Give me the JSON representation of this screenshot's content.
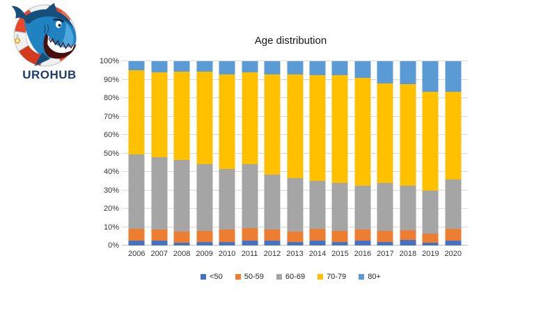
{
  "logo": {
    "text": "UROHUB",
    "colors": {
      "ring": "#E9492B",
      "ring_dark": "#D43A1F",
      "ring_light": "#F3704E",
      "shark_dark": "#174F7C",
      "shark_mid": "#2182C2",
      "shark_light": "#4FA8DC",
      "text": "#1D3C6E"
    }
  },
  "chart_data": {
    "type": "bar",
    "stacked": true,
    "percent_stacked": true,
    "title": "Age distribution",
    "categories": [
      "2006",
      "2007",
      "2008",
      "2009",
      "2010",
      "2011",
      "2012",
      "2013",
      "2014",
      "2015",
      "2016",
      "2017",
      "2018",
      "2019",
      "2020"
    ],
    "series": [
      {
        "name": "<50",
        "color": "#4472C4",
        "values": [
          2.5,
          2.5,
          1.5,
          2.0,
          2.0,
          2.5,
          2.5,
          2.0,
          2.5,
          2.0,
          2.5,
          2.0,
          3.0,
          1.5,
          2.5
        ]
      },
      {
        "name": "50-59",
        "color": "#ED7D31",
        "values": [
          6.5,
          6.0,
          6.0,
          6.0,
          6.5,
          7.0,
          6.0,
          5.5,
          6.5,
          6.0,
          6.0,
          6.0,
          5.5,
          5.0,
          6.5
        ]
      },
      {
        "name": "60-69",
        "color": "#A5A5A5",
        "values": [
          40.5,
          39.5,
          39.0,
          36.0,
          33.0,
          34.5,
          30.0,
          29.0,
          26.0,
          26.0,
          24.0,
          26.0,
          24.0,
          23.5,
          27.0
        ]
      },
      {
        "name": "70-79",
        "color": "#FFC000",
        "values": [
          45.5,
          46.0,
          48.0,
          50.5,
          51.5,
          50.0,
          54.5,
          56.5,
          57.5,
          58.5,
          58.5,
          54.0,
          55.0,
          53.5,
          47.5
        ]
      },
      {
        "name": "80+",
        "color": "#5B9BD5",
        "values": [
          5.0,
          6.0,
          5.5,
          5.5,
          7.0,
          6.0,
          7.0,
          7.0,
          7.5,
          7.5,
          9.0,
          12.0,
          12.5,
          16.5,
          16.5
        ]
      }
    ],
    "y_axis": {
      "min": 0,
      "max": 100,
      "tick_step": 10,
      "ticks": [
        "0%",
        "10%",
        "20%",
        "30%",
        "40%",
        "50%",
        "60%",
        "70%",
        "80%",
        "90%",
        "100%"
      ]
    },
    "x_axis_label": "",
    "y_axis_label": "",
    "legend_position": "bottom",
    "gridlines": true
  }
}
